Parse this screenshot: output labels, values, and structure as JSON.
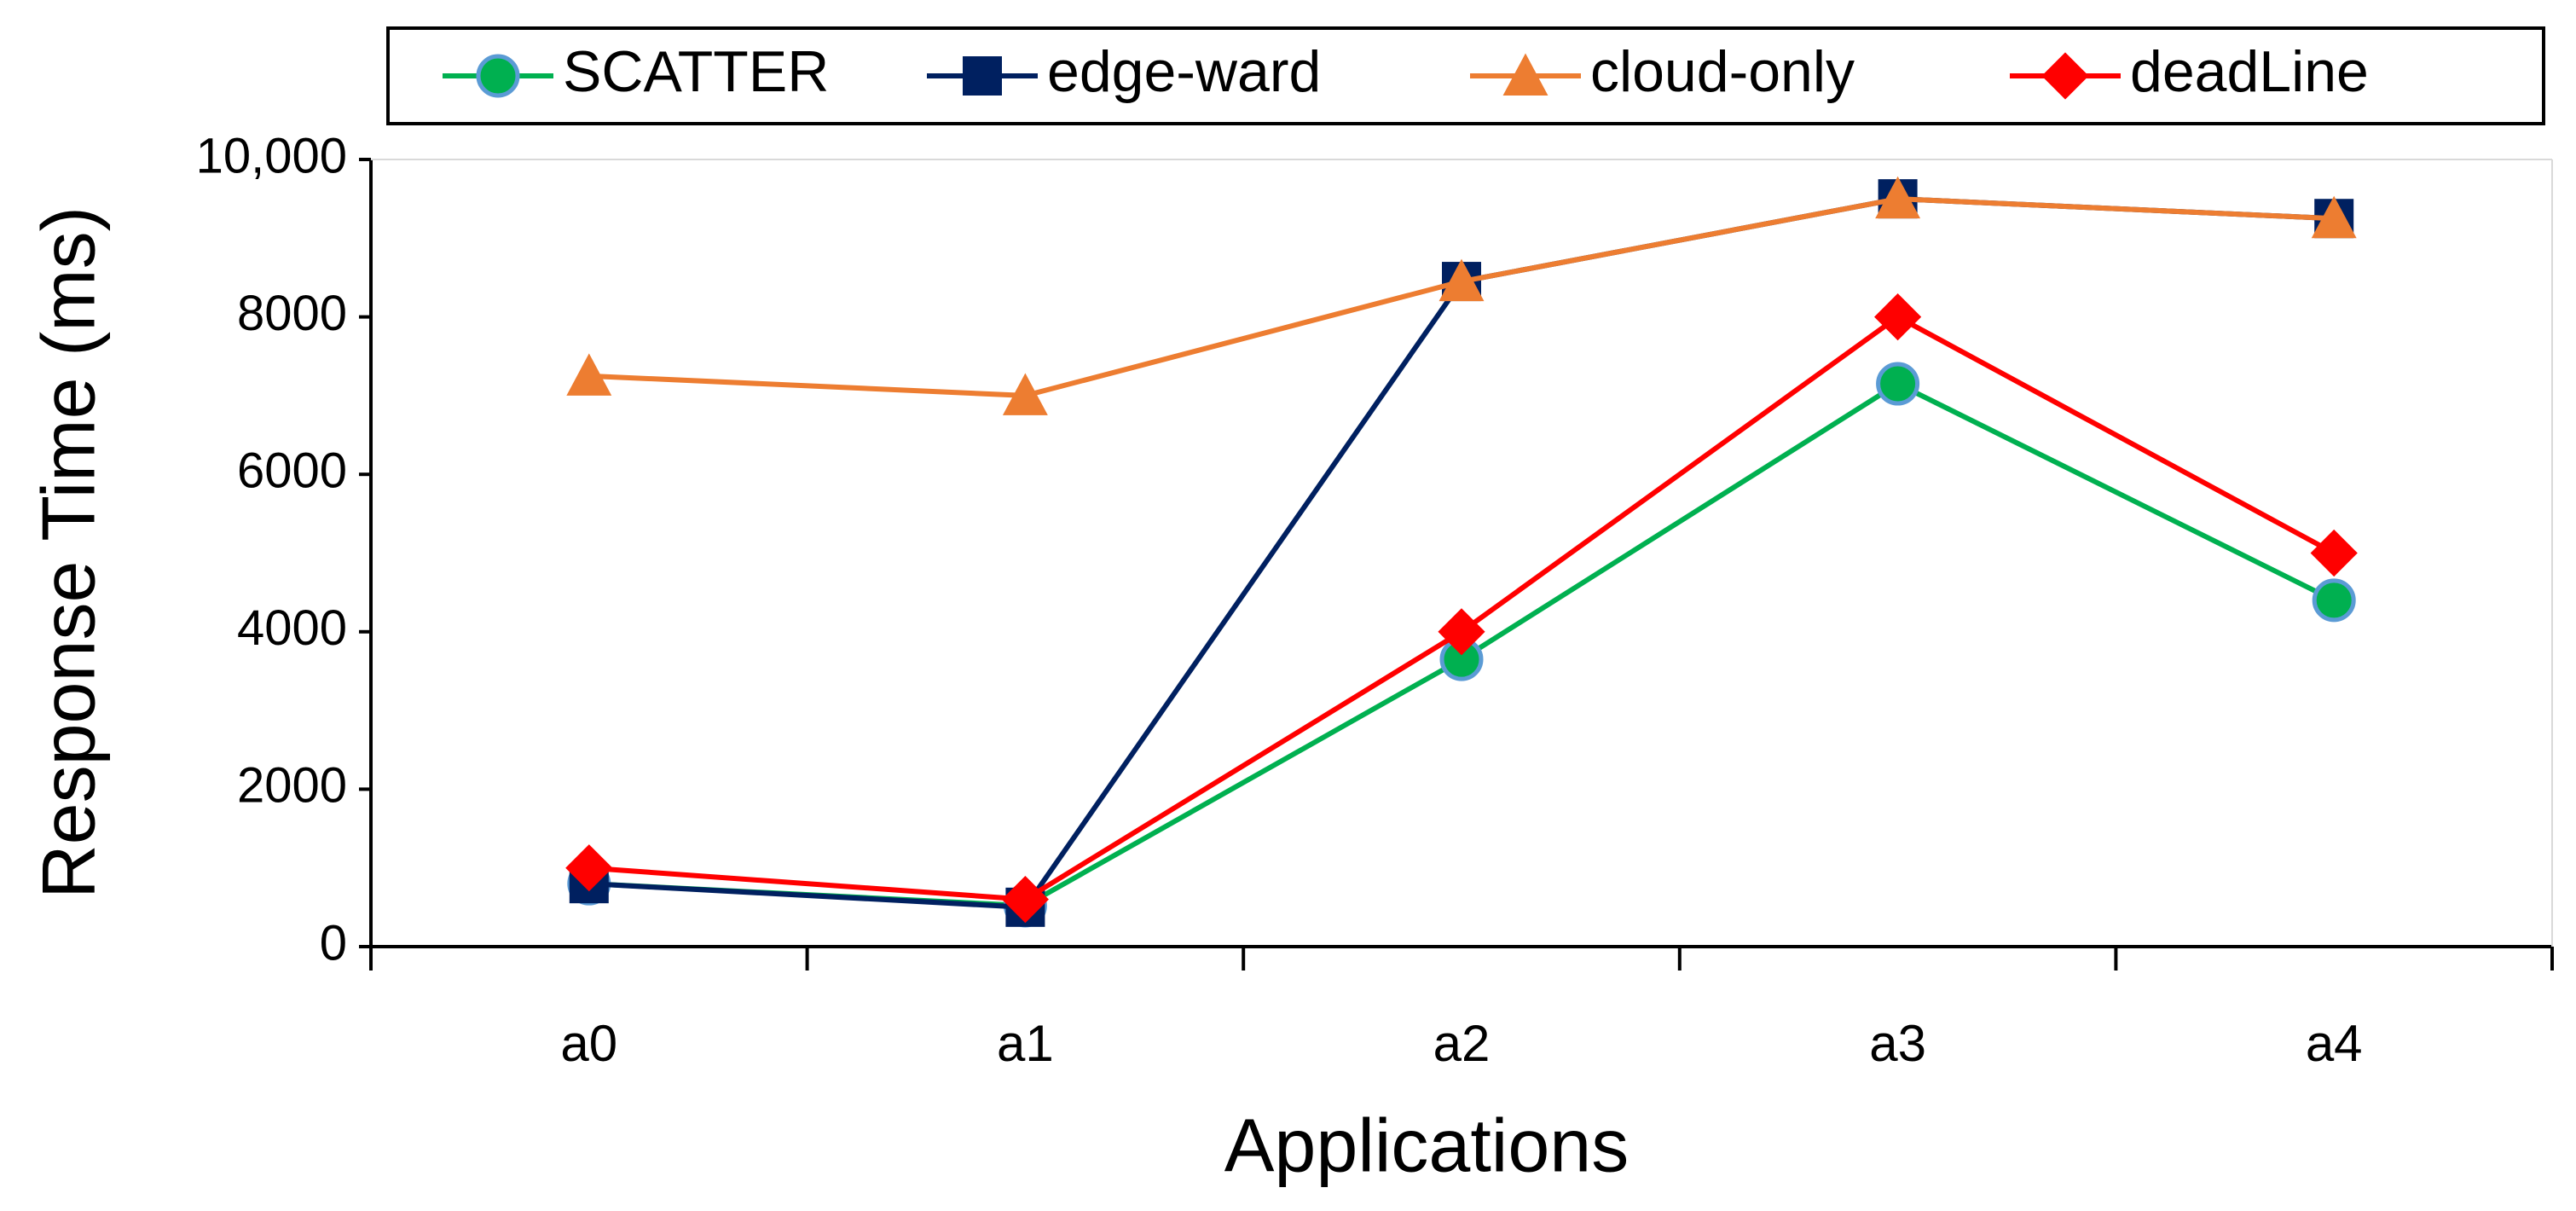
{
  "chart_data": {
    "type": "line",
    "x_label": "Applications",
    "y_label": "Response Time (ms)",
    "categories": [
      "a0",
      "a1",
      "a2",
      "a3",
      "a4"
    ],
    "series": [
      {
        "name": "SCATTER",
        "color": "#00b050",
        "marker": "circle",
        "values": [
          800,
          520,
          3650,
          7150,
          4400
        ]
      },
      {
        "name": "edge-ward",
        "color": "#002060",
        "marker": "square",
        "values": [
          800,
          500,
          8450,
          9500,
          9250
        ]
      },
      {
        "name": "cloud-only",
        "color": "#ed7d31",
        "marker": "triangle",
        "values": [
          7250,
          7000,
          8450,
          9500,
          9250
        ]
      },
      {
        "name": "deadLine",
        "color": "#ff0000",
        "marker": "diamond",
        "values": [
          1000,
          600,
          4000,
          8000,
          5000
        ]
      }
    ],
    "ylim": [
      0,
      10000
    ],
    "yticks": [
      0,
      2000,
      4000,
      6000,
      8000,
      {
        "value": 10000,
        "label": "10,000"
      }
    ],
    "grid": false,
    "legend": "top"
  }
}
